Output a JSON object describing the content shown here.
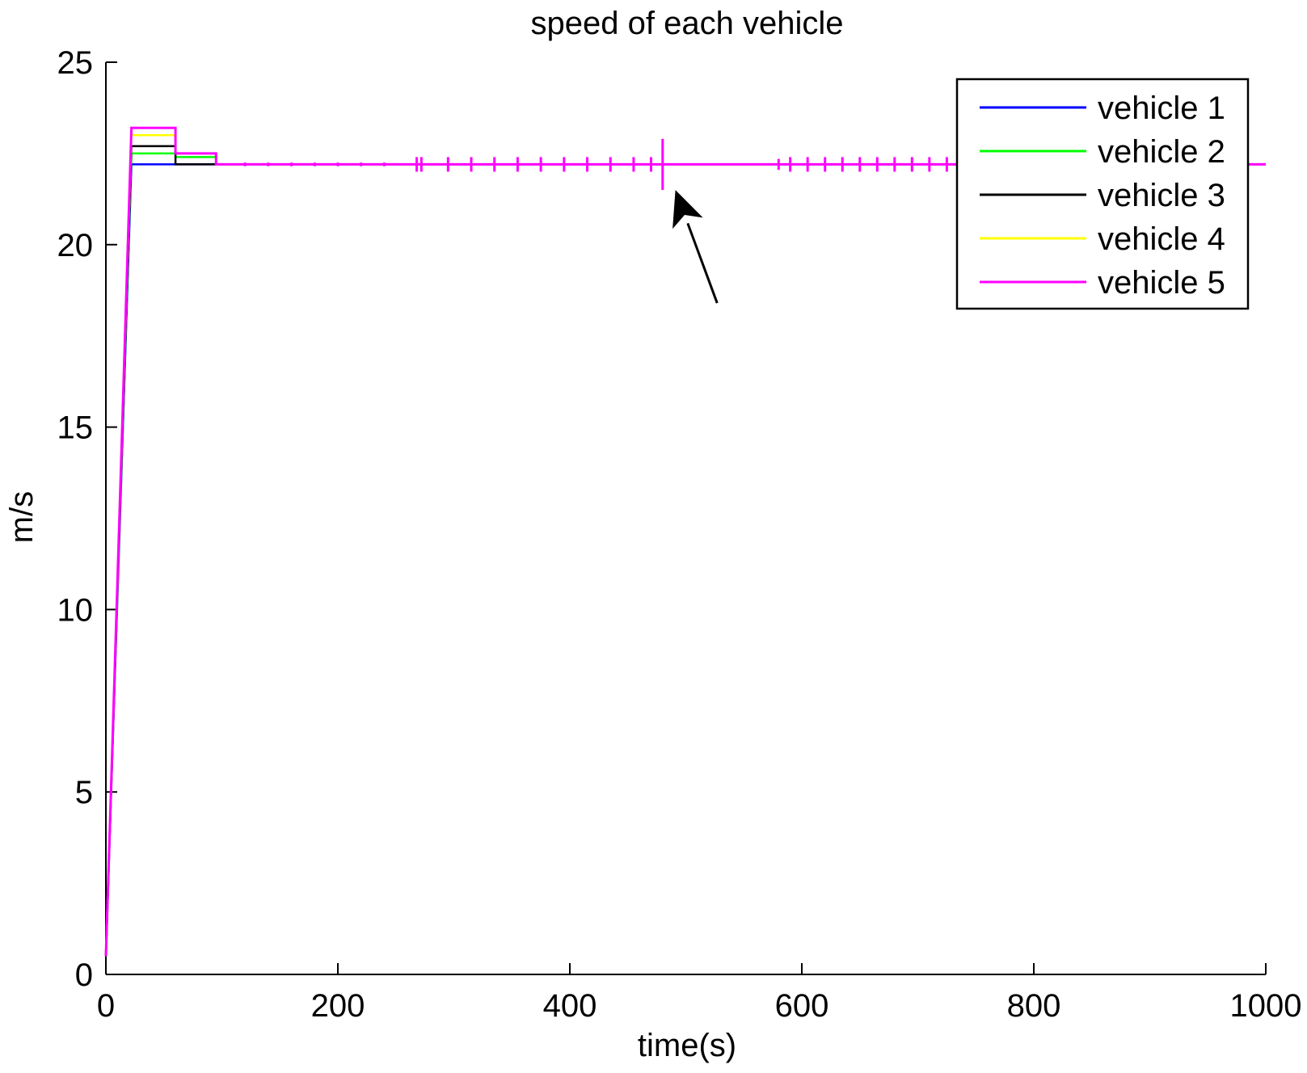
{
  "chart_data": {
    "type": "line",
    "title": "speed of each vehicle",
    "xlabel": "time(s)",
    "ylabel": "m/s",
    "xlim": [
      0,
      1000
    ],
    "ylim": [
      0,
      25
    ],
    "xticks": [
      0,
      200,
      400,
      600,
      800,
      1000
    ],
    "yticks": [
      0,
      5,
      10,
      15,
      20,
      25
    ],
    "grid": false,
    "legend_position": "top-right",
    "series": [
      {
        "name": "vehicle 1",
        "color": "#0000ff",
        "x": [
          0,
          22,
          22,
          60,
          60,
          95,
          95,
          1000
        ],
        "y": [
          0.5,
          22.2,
          22.2,
          22.2,
          22.2,
          22.2,
          22.2,
          22.2
        ]
      },
      {
        "name": "vehicle 2",
        "color": "#00ff00",
        "x": [
          0,
          22,
          22,
          60,
          60,
          95,
          95,
          1000
        ],
        "y": [
          0.5,
          22.5,
          22.5,
          22.5,
          22.4,
          22.4,
          22.2,
          22.2
        ]
      },
      {
        "name": "vehicle 3",
        "color": "#000000",
        "x": [
          0,
          22,
          22,
          60,
          60,
          95,
          95,
          1000
        ],
        "y": [
          0.5,
          22.7,
          22.7,
          22.7,
          22.2,
          22.2,
          22.2,
          22.2
        ]
      },
      {
        "name": "vehicle 4",
        "color": "#ffff00",
        "x": [
          0,
          22,
          22,
          60,
          60,
          95,
          95,
          1000
        ],
        "y": [
          0.5,
          23.0,
          23.0,
          23.0,
          22.5,
          22.5,
          22.2,
          22.2
        ]
      },
      {
        "name": "vehicle 5",
        "color": "#ff00ff",
        "x": [
          0,
          22,
          22,
          60,
          60,
          95,
          95,
          1000
        ],
        "y": [
          0.5,
          23.2,
          23.2,
          23.2,
          22.5,
          22.5,
          22.2,
          22.2
        ]
      }
    ],
    "oscillations": {
      "series": "vehicle 5",
      "base": 22.2,
      "bursts": [
        {
          "x": 120,
          "amp": 0.05
        },
        {
          "x": 140,
          "amp": 0.05
        },
        {
          "x": 160,
          "amp": 0.05
        },
        {
          "x": 180,
          "amp": 0.05
        },
        {
          "x": 200,
          "amp": 0.05
        },
        {
          "x": 220,
          "amp": 0.05
        },
        {
          "x": 240,
          "amp": 0.05
        },
        {
          "x": 268,
          "amp": 0.2
        },
        {
          "x": 272,
          "amp": 0.2
        },
        {
          "x": 295,
          "amp": 0.2
        },
        {
          "x": 315,
          "amp": 0.2
        },
        {
          "x": 335,
          "amp": 0.2
        },
        {
          "x": 355,
          "amp": 0.2
        },
        {
          "x": 375,
          "amp": 0.2
        },
        {
          "x": 395,
          "amp": 0.2
        },
        {
          "x": 415,
          "amp": 0.2
        },
        {
          "x": 435,
          "amp": 0.2
        },
        {
          "x": 455,
          "amp": 0.2
        },
        {
          "x": 470,
          "amp": 0.2
        },
        {
          "x": 480,
          "amp": 0.7
        },
        {
          "x": 580,
          "amp": 0.15
        },
        {
          "x": 590,
          "amp": 0.2
        },
        {
          "x": 605,
          "amp": 0.2
        },
        {
          "x": 620,
          "amp": 0.2
        },
        {
          "x": 635,
          "amp": 0.2
        },
        {
          "x": 650,
          "amp": 0.2
        },
        {
          "x": 665,
          "amp": 0.2
        },
        {
          "x": 680,
          "amp": 0.2
        },
        {
          "x": 695,
          "amp": 0.2
        },
        {
          "x": 710,
          "amp": 0.2
        },
        {
          "x": 725,
          "amp": 0.2
        },
        {
          "x": 735,
          "amp": 0.2
        }
      ]
    },
    "annotation": {
      "type": "arrow",
      "tip_x": 491,
      "tip_y": 21.5,
      "tail_x": 527,
      "tail_y": 18.4
    }
  }
}
